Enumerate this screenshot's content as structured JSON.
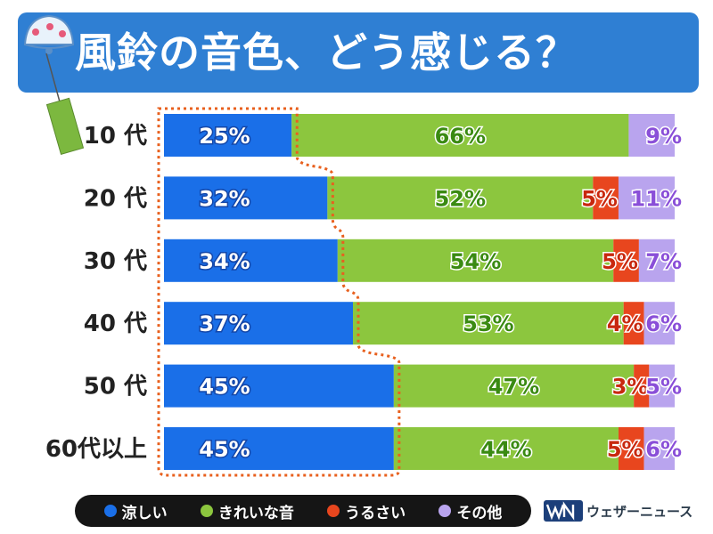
{
  "title": "風鈴の音色、どう感じる？",
  "brand": {
    "name": "ウェザーニュース"
  },
  "colors": {
    "cool": "#1a6fe8",
    "beautiful": "#8cc63e",
    "noisy": "#e8461e",
    "other": "#b9a4ee",
    "title_bg": "#2f7fd3"
  },
  "legend": [
    {
      "label": "涼しい",
      "color": "#1a6fe8"
    },
    {
      "label": "きれいな音",
      "color": "#8cc63e"
    },
    {
      "label": "うるさい",
      "color": "#e8461e"
    },
    {
      "label": "その他",
      "color": "#b9a4ee"
    }
  ],
  "chart_data": {
    "type": "bar",
    "stacked": true,
    "orientation": "horizontal",
    "categories": [
      "10 代",
      "20 代",
      "30 代",
      "40 代",
      "50 代",
      "60代以上"
    ],
    "series": [
      {
        "name": "涼しい",
        "values": [
          25,
          32,
          34,
          37,
          45,
          45
        ],
        "labels": [
          "25%",
          "32%",
          "34%",
          "37%",
          "45%",
          "45%"
        ],
        "color": "#1a6fe8"
      },
      {
        "name": "きれいな音",
        "values": [
          66,
          52,
          54,
          53,
          47,
          44
        ],
        "labels": [
          "66%",
          "52%",
          "54%",
          "53%",
          "47%",
          "44%"
        ],
        "color": "#8cc63e"
      },
      {
        "name": "うるさい",
        "values": [
          0,
          5,
          5,
          4,
          3,
          5
        ],
        "labels": [
          "",
          "5%",
          "5%",
          "4%",
          "3%",
          "5%"
        ],
        "color": "#e8461e"
      },
      {
        "name": "その他",
        "values": [
          9,
          11,
          7,
          6,
          5,
          6
        ],
        "labels": [
          "9%",
          "11%",
          "7%",
          "6%",
          "5%",
          "6%"
        ],
        "color": "#b9a4ee"
      }
    ],
    "xlim": [
      0,
      100
    ]
  }
}
